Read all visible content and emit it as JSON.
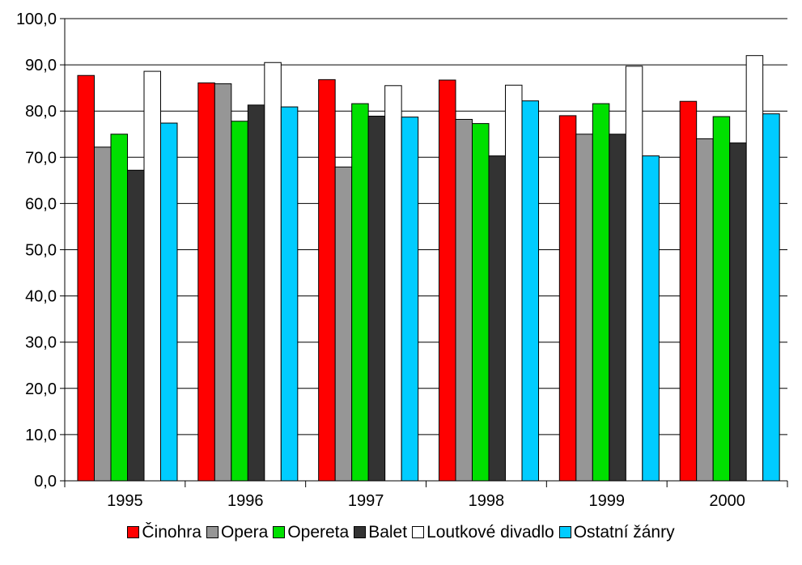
{
  "chart_data": {
    "type": "bar",
    "categories": [
      "1995",
      "1996",
      "1997",
      "1998",
      "1999",
      "2000"
    ],
    "series": [
      {
        "name": "Činohra",
        "color": "#ff0000",
        "values": [
          87.7,
          86.1,
          86.8,
          86.7,
          79.0,
          82.1
        ]
      },
      {
        "name": "Opera",
        "color": "#969696",
        "values": [
          72.2,
          85.9,
          67.9,
          78.2,
          75.0,
          74.0
        ]
      },
      {
        "name": "Opereta",
        "color": "#00e000",
        "values": [
          75.0,
          77.8,
          81.6,
          77.3,
          81.6,
          78.8
        ]
      },
      {
        "name": "Balet",
        "color": "#333333",
        "values": [
          67.2,
          81.3,
          78.9,
          70.3,
          75.0,
          73.1
        ]
      },
      {
        "name": "Loutkové divadlo",
        "color": "#ffffff",
        "values": [
          88.6,
          90.5,
          85.5,
          85.6,
          89.7,
          92.0
        ]
      },
      {
        "name": "Ostatní žánry",
        "color": "#00ccff",
        "values": [
          77.4,
          80.9,
          78.7,
          82.2,
          70.3,
          79.4
        ]
      }
    ],
    "ylim": [
      0,
      100
    ],
    "yticks": [
      "0,0",
      "10,0",
      "20,0",
      "30,0",
      "40,0",
      "50,0",
      "60,0",
      "70,0",
      "80,0",
      "90,0",
      "100,0"
    ],
    "grid": true,
    "legend_position": "bottom"
  }
}
